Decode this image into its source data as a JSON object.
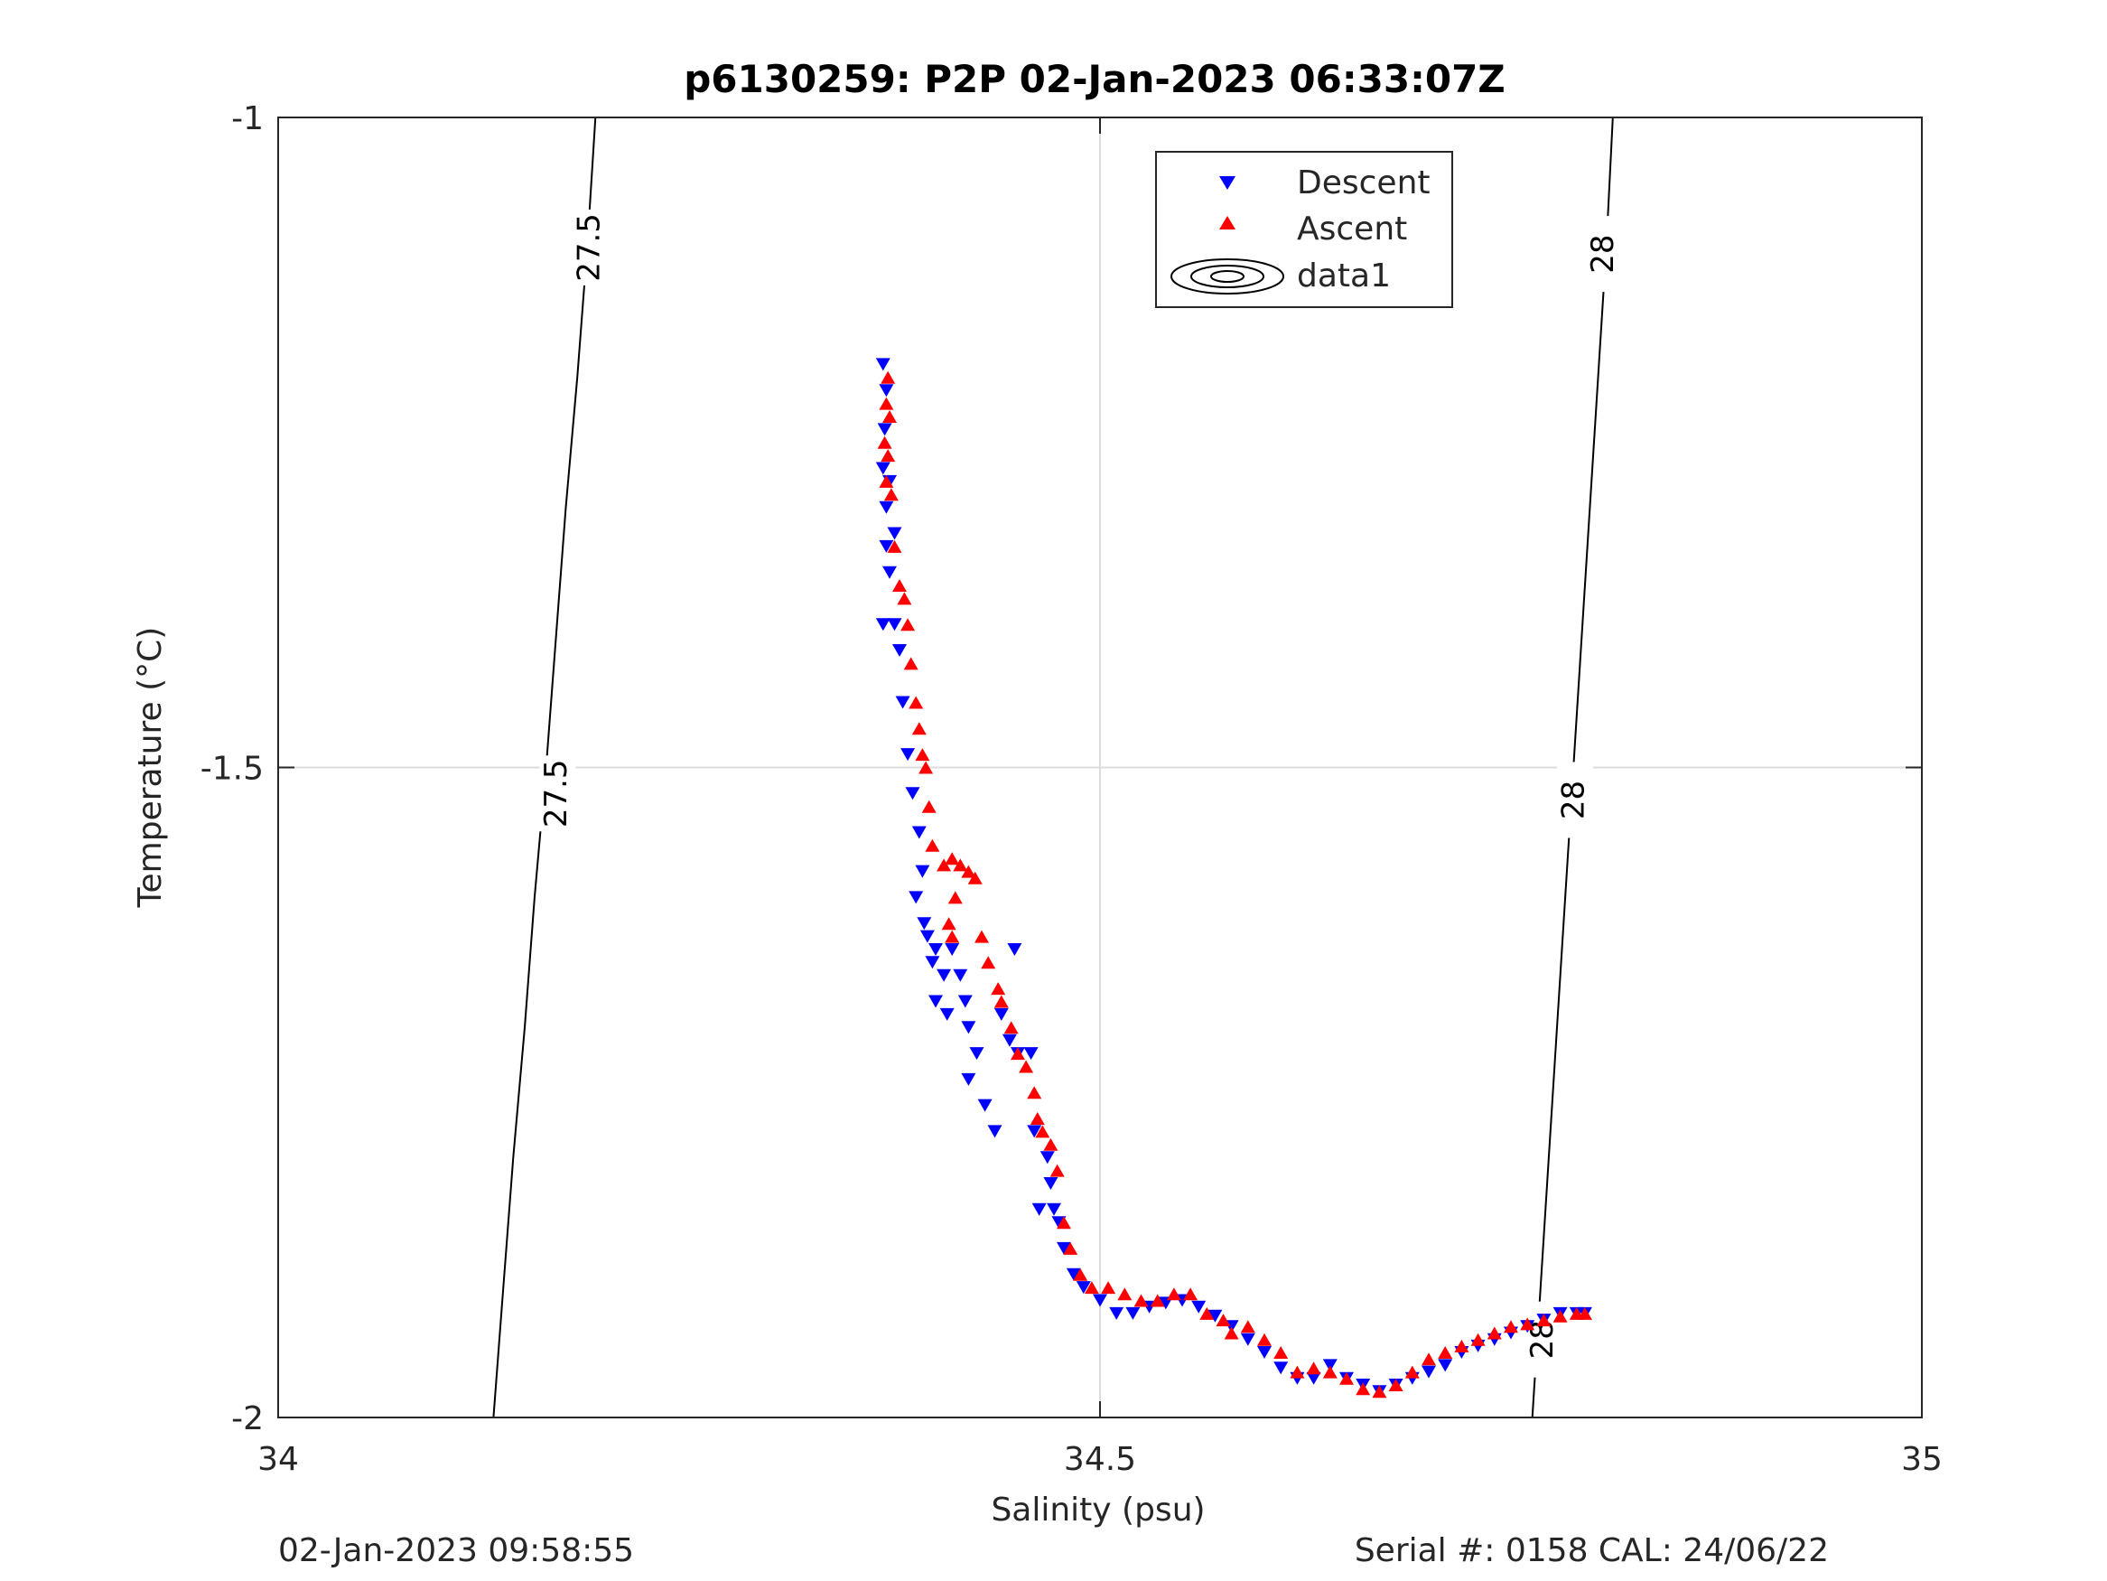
{
  "chart_data": {
    "type": "scatter",
    "title": "p6130259: P2P 02-Jan-2023 06:33:07Z",
    "xlabel": "Salinity (psu)",
    "ylabel": "Temperature (°C)",
    "xlim": [
      34,
      35
    ],
    "ylim": [
      -2,
      -1
    ],
    "x_ticks": [
      "34",
      "34.5",
      "35"
    ],
    "x_tick_values": [
      34,
      34.5,
      35
    ],
    "y_ticks": [
      "-1",
      "-1.5",
      "-2"
    ],
    "y_tick_values": [
      -1,
      -1.5,
      -2
    ],
    "grid": true,
    "legend_position": "top-center",
    "legend": [
      "Descent",
      "Ascent",
      "data1"
    ],
    "colors": {
      "descent": "#0000ff",
      "ascent": "#ff0000",
      "contour": "#000000",
      "grid": "#dcdcdc"
    },
    "contours": [
      {
        "level": 27.5,
        "label": "27.5",
        "points": [
          [
            34.193,
            -1.0
          ],
          [
            34.188,
            -1.1
          ],
          [
            34.182,
            -1.2
          ],
          [
            34.175,
            -1.3
          ],
          [
            34.169,
            -1.4
          ],
          [
            34.163,
            -1.5
          ],
          [
            34.156,
            -1.6
          ],
          [
            34.15,
            -1.7
          ],
          [
            34.143,
            -1.8
          ],
          [
            34.137,
            -1.9
          ],
          [
            34.131,
            -2.0
          ]
        ]
      },
      {
        "level": 28,
        "label": "28",
        "points": [
          [
            34.812,
            -1.0
          ],
          [
            34.808,
            -1.1
          ],
          [
            34.803,
            -1.2
          ],
          [
            34.798,
            -1.3
          ],
          [
            34.793,
            -1.4
          ],
          [
            34.788,
            -1.5
          ],
          [
            34.783,
            -1.6
          ],
          [
            34.778,
            -1.7
          ],
          [
            34.773,
            -1.8
          ],
          [
            34.768,
            -1.9
          ],
          [
            34.763,
            -2.0
          ]
        ]
      }
    ],
    "contour_labels": [
      {
        "text": "27.5",
        "x": 34.19,
        "y": -1.1
      },
      {
        "text": "27.5",
        "x": 34.17,
        "y": -1.52
      },
      {
        "text": "28",
        "x": 34.807,
        "y": -1.105
      },
      {
        "text": "28",
        "x": 34.789,
        "y": -1.525
      },
      {
        "text": "28",
        "x": 34.77,
        "y": -1.94
      }
    ],
    "series": [
      {
        "name": "Descent",
        "marker": "triangle-down",
        "points": [
          [
            34.368,
            -1.19
          ],
          [
            34.37,
            -1.21
          ],
          [
            34.369,
            -1.24
          ],
          [
            34.368,
            -1.27
          ],
          [
            34.372,
            -1.28
          ],
          [
            34.37,
            -1.3
          ],
          [
            34.375,
            -1.32
          ],
          [
            34.37,
            -1.33
          ],
          [
            34.372,
            -1.35
          ],
          [
            34.368,
            -1.39
          ],
          [
            34.375,
            -1.39
          ],
          [
            34.378,
            -1.41
          ],
          [
            34.38,
            -1.45
          ],
          [
            34.383,
            -1.49
          ],
          [
            34.386,
            -1.52
          ],
          [
            34.39,
            -1.55
          ],
          [
            34.392,
            -1.58
          ],
          [
            34.388,
            -1.6
          ],
          [
            34.393,
            -1.62
          ],
          [
            34.395,
            -1.63
          ],
          [
            34.4,
            -1.64
          ],
          [
            34.398,
            -1.65
          ],
          [
            34.405,
            -1.66
          ],
          [
            34.4,
            -1.68
          ],
          [
            34.407,
            -1.69
          ],
          [
            34.41,
            -1.64
          ],
          [
            34.415,
            -1.66
          ],
          [
            34.418,
            -1.68
          ],
          [
            34.42,
            -1.7
          ],
          [
            34.425,
            -1.72
          ],
          [
            34.42,
            -1.74
          ],
          [
            34.43,
            -1.76
          ],
          [
            34.436,
            -1.78
          ],
          [
            34.44,
            -1.69
          ],
          [
            34.445,
            -1.71
          ],
          [
            34.448,
            -1.64
          ],
          [
            34.45,
            -1.72
          ],
          [
            34.458,
            -1.72
          ],
          [
            34.46,
            -1.78
          ],
          [
            34.463,
            -1.84
          ],
          [
            34.468,
            -1.8
          ],
          [
            34.47,
            -1.82
          ],
          [
            34.472,
            -1.84
          ],
          [
            34.475,
            -1.85
          ],
          [
            34.478,
            -1.87
          ],
          [
            34.484,
            -1.89
          ],
          [
            34.49,
            -1.9
          ],
          [
            34.5,
            -1.91
          ],
          [
            34.51,
            -1.92
          ],
          [
            34.52,
            -1.92
          ],
          [
            34.53,
            -1.915
          ],
          [
            34.54,
            -1.912
          ],
          [
            34.55,
            -1.91
          ],
          [
            34.56,
            -1.915
          ],
          [
            34.57,
            -1.922
          ],
          [
            34.58,
            -1.93
          ],
          [
            34.59,
            -1.94
          ],
          [
            34.6,
            -1.95
          ],
          [
            34.61,
            -1.962
          ],
          [
            34.62,
            -1.97
          ],
          [
            34.63,
            -1.97
          ],
          [
            34.64,
            -1.96
          ],
          [
            34.65,
            -1.97
          ],
          [
            34.66,
            -1.975
          ],
          [
            34.67,
            -1.98
          ],
          [
            34.68,
            -1.975
          ],
          [
            34.69,
            -1.97
          ],
          [
            34.7,
            -1.965
          ],
          [
            34.71,
            -1.96
          ],
          [
            34.72,
            -1.95
          ],
          [
            34.73,
            -1.945
          ],
          [
            34.74,
            -1.94
          ],
          [
            34.75,
            -1.935
          ],
          [
            34.76,
            -1.93
          ],
          [
            34.77,
            -1.925
          ],
          [
            34.78,
            -1.92
          ],
          [
            34.79,
            -1.92
          ],
          [
            34.795,
            -1.92
          ]
        ]
      },
      {
        "name": "Ascent",
        "marker": "triangle-up",
        "points": [
          [
            34.371,
            -1.2
          ],
          [
            34.37,
            -1.22
          ],
          [
            34.372,
            -1.23
          ],
          [
            34.369,
            -1.25
          ],
          [
            34.371,
            -1.26
          ],
          [
            34.37,
            -1.28
          ],
          [
            34.373,
            -1.29
          ],
          [
            34.375,
            -1.33
          ],
          [
            34.378,
            -1.36
          ],
          [
            34.381,
            -1.37
          ],
          [
            34.383,
            -1.39
          ],
          [
            34.385,
            -1.42
          ],
          [
            34.388,
            -1.45
          ],
          [
            34.39,
            -1.47
          ],
          [
            34.392,
            -1.49
          ],
          [
            34.394,
            -1.5
          ],
          [
            34.396,
            -1.53
          ],
          [
            34.398,
            -1.56
          ],
          [
            34.405,
            -1.575
          ],
          [
            34.41,
            -1.57
          ],
          [
            34.415,
            -1.575
          ],
          [
            34.42,
            -1.58
          ],
          [
            34.424,
            -1.585
          ],
          [
            34.412,
            -1.6
          ],
          [
            34.408,
            -1.62
          ],
          [
            34.41,
            -1.63
          ],
          [
            34.428,
            -1.63
          ],
          [
            34.432,
            -1.65
          ],
          [
            34.438,
            -1.67
          ],
          [
            34.44,
            -1.68
          ],
          [
            34.446,
            -1.7
          ],
          [
            34.45,
            -1.72
          ],
          [
            34.455,
            -1.73
          ],
          [
            34.46,
            -1.75
          ],
          [
            34.462,
            -1.77
          ],
          [
            34.465,
            -1.78
          ],
          [
            34.47,
            -1.79
          ],
          [
            34.474,
            -1.81
          ],
          [
            34.478,
            -1.85
          ],
          [
            34.482,
            -1.87
          ],
          [
            34.488,
            -1.89
          ],
          [
            34.495,
            -1.9
          ],
          [
            34.505,
            -1.9
          ],
          [
            34.515,
            -1.905
          ],
          [
            34.525,
            -1.91
          ],
          [
            34.535,
            -1.91
          ],
          [
            34.545,
            -1.905
          ],
          [
            34.555,
            -1.905
          ],
          [
            34.565,
            -1.92
          ],
          [
            34.575,
            -1.925
          ],
          [
            34.58,
            -1.935
          ],
          [
            34.59,
            -1.93
          ],
          [
            34.6,
            -1.94
          ],
          [
            34.61,
            -1.95
          ],
          [
            34.62,
            -1.965
          ],
          [
            34.63,
            -1.962
          ],
          [
            34.64,
            -1.965
          ],
          [
            34.65,
            -1.97
          ],
          [
            34.66,
            -1.978
          ],
          [
            34.67,
            -1.98
          ],
          [
            34.68,
            -1.975
          ],
          [
            34.69,
            -1.965
          ],
          [
            34.7,
            -1.955
          ],
          [
            34.71,
            -1.95
          ],
          [
            34.72,
            -1.945
          ],
          [
            34.73,
            -1.94
          ],
          [
            34.74,
            -1.935
          ],
          [
            34.75,
            -1.93
          ],
          [
            34.76,
            -1.928
          ],
          [
            34.77,
            -1.925
          ],
          [
            34.78,
            -1.922
          ],
          [
            34.79,
            -1.92
          ],
          [
            34.795,
            -1.92
          ]
        ]
      }
    ]
  },
  "footer": {
    "timestamp": "02-Jan-2023 09:58:55",
    "serial": "Serial #: 0158  CAL: 24/06/22"
  }
}
